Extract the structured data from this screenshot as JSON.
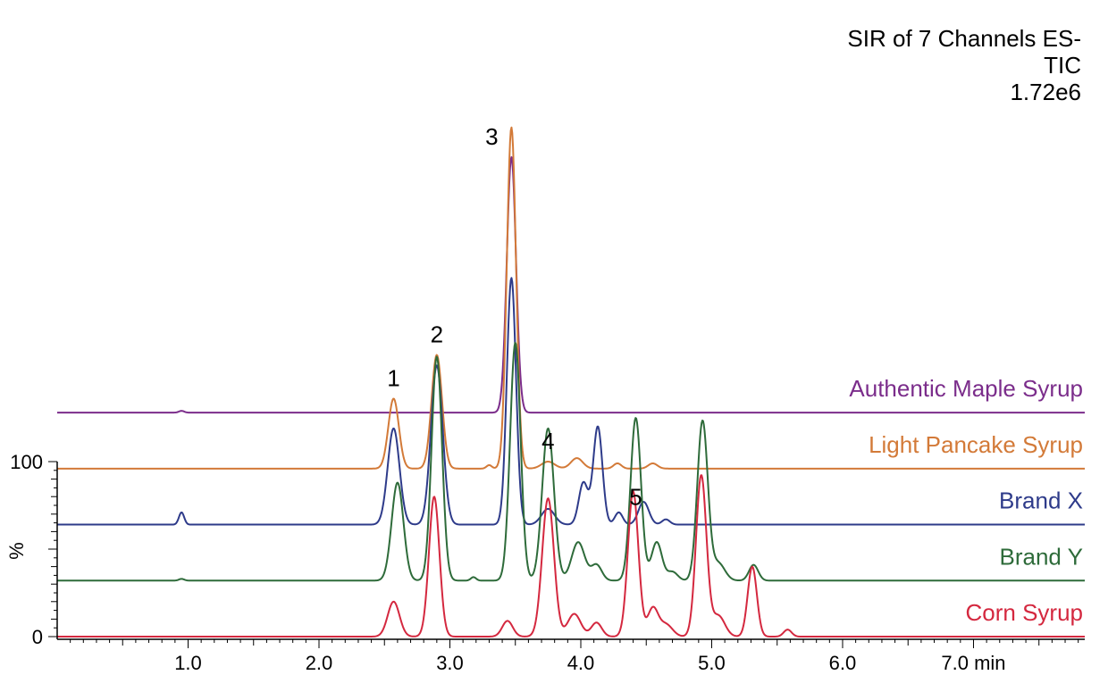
{
  "chart_data": {
    "type": "line",
    "header": [
      "SIR of 7 Channels ES-",
      "TIC",
      "1.72e6"
    ],
    "x_unit": "min",
    "xlim": [
      0.0,
      7.85
    ],
    "x_ticks": [
      {
        "value": 1.0,
        "label": "1.0"
      },
      {
        "value": 2.0,
        "label": "2.0"
      },
      {
        "value": 3.0,
        "label": "3.0"
      },
      {
        "value": 4.0,
        "label": "4.0"
      },
      {
        "value": 5.0,
        "label": "5.0"
      },
      {
        "value": 6.0,
        "label": "6.0"
      },
      {
        "value": 7.0,
        "label": "7.0 min"
      }
    ],
    "y_axis": {
      "label": "%",
      "ticks": [
        {
          "value": 0,
          "label": "0"
        },
        {
          "value": 100,
          "label": "100"
        }
      ]
    },
    "stack_offset": 32,
    "series": [
      {
        "name": "Authentic Maple Syrup",
        "color": "#7b2d8b",
        "peaks": [
          [
            0.95,
            1.0,
            0.02
          ],
          [
            3.47,
            146,
            0.035
          ]
        ]
      },
      {
        "name": "Light Pancake Syrup",
        "color": "#d37a38",
        "peaks": [
          [
            2.57,
            40,
            0.04
          ],
          [
            2.9,
            65,
            0.04
          ],
          [
            3.3,
            2,
            0.02
          ],
          [
            3.47,
            195,
            0.035
          ],
          [
            3.75,
            4,
            0.05
          ],
          [
            3.97,
            6,
            0.045
          ],
          [
            4.28,
            3,
            0.03
          ],
          [
            4.55,
            3,
            0.035
          ]
        ]
      },
      {
        "name": "Brand X",
        "color": "#2e3b8a",
        "peaks": [
          [
            0.95,
            7,
            0.02
          ],
          [
            2.57,
            55,
            0.045
          ],
          [
            2.9,
            91,
            0.045
          ],
          [
            3.47,
            141,
            0.035
          ],
          [
            3.75,
            9,
            0.05
          ],
          [
            4.02,
            24,
            0.035
          ],
          [
            4.13,
            56,
            0.035
          ],
          [
            4.29,
            7,
            0.03
          ],
          [
            4.48,
            13,
            0.04
          ],
          [
            4.65,
            3,
            0.03
          ]
        ]
      },
      {
        "name": "Brand Y",
        "color": "#2e6b3a",
        "peaks": [
          [
            0.95,
            1.0,
            0.02
          ],
          [
            2.6,
            56,
            0.045
          ],
          [
            2.9,
            128,
            0.04
          ],
          [
            3.18,
            2,
            0.02
          ],
          [
            3.5,
            136,
            0.04
          ],
          [
            3.75,
            87,
            0.045
          ],
          [
            3.98,
            22,
            0.05
          ],
          [
            4.12,
            9,
            0.04
          ],
          [
            4.42,
            93,
            0.04
          ],
          [
            4.58,
            22,
            0.04
          ],
          [
            4.7,
            5,
            0.04
          ],
          [
            4.93,
            91,
            0.04
          ],
          [
            5.05,
            10,
            0.05
          ],
          [
            5.32,
            9,
            0.035
          ]
        ]
      },
      {
        "name": "Corn Syrup",
        "color": "#d4283f",
        "peaks": [
          [
            2.57,
            20,
            0.045
          ],
          [
            2.88,
            80,
            0.04
          ],
          [
            3.44,
            9,
            0.04
          ],
          [
            3.75,
            79,
            0.045
          ],
          [
            3.95,
            13,
            0.05
          ],
          [
            4.12,
            8,
            0.04
          ],
          [
            4.4,
            83,
            0.04
          ],
          [
            4.55,
            16,
            0.04
          ],
          [
            4.65,
            7,
            0.05
          ],
          [
            4.92,
            92,
            0.04
          ],
          [
            5.05,
            12,
            0.05
          ],
          [
            5.31,
            40,
            0.035
          ],
          [
            5.58,
            4,
            0.03
          ]
        ]
      }
    ],
    "annotations": [
      {
        "text": "1",
        "x": 2.57,
        "series": "Light Pancake Syrup"
      },
      {
        "text": "2",
        "x": 2.9,
        "series": "Light Pancake Syrup"
      },
      {
        "text": "3",
        "x": 3.47,
        "series": "Authentic Maple Syrup"
      },
      {
        "text": "4",
        "x": 3.75,
        "series": "Light Pancake Syrup"
      },
      {
        "text": "5",
        "x": 4.42,
        "series": "Brand X"
      }
    ]
  }
}
